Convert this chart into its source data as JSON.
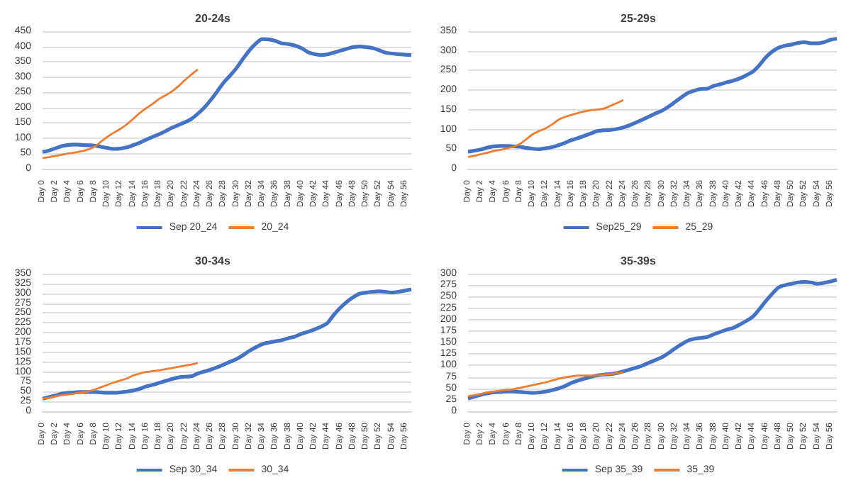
{
  "chart_data": [
    {
      "type": "line",
      "title": "20-24s",
      "categories": [
        "Day 0",
        null,
        "Day 2",
        null,
        "Day 4",
        null,
        "Day 6",
        null,
        "Day 8",
        null,
        "Day 10",
        null,
        "Day 12",
        null,
        "Day 14",
        null,
        "Day 16",
        null,
        "Day 18",
        null,
        "Day 20",
        null,
        "Day 22",
        null,
        "Day 24",
        null,
        "Day 26",
        null,
        "Day 28",
        null,
        "Day 30",
        null,
        "Day 32",
        null,
        "Day 34",
        null,
        "Day 36",
        null,
        "Day 38",
        null,
        "Day 40",
        null,
        "Day 42",
        null,
        "Day 44",
        null,
        "Day 46",
        null,
        "Day 48",
        null,
        "Day 50",
        null,
        "Day 52",
        null,
        "Day 54",
        null,
        "Day 56",
        null
      ],
      "ylim": [
        0,
        450
      ],
      "yticks": [
        0,
        50,
        100,
        150,
        200,
        250,
        300,
        350,
        400,
        450
      ],
      "grid": "y",
      "legend": "bottom",
      "marker": "none",
      "series": [
        {
          "name": "Sep 20_24",
          "color": "#4472c4",
          "values": [
            55,
            60,
            67,
            74,
            78,
            79,
            78,
            77,
            76,
            72,
            68,
            65,
            66,
            70,
            77,
            85,
            95,
            104,
            113,
            123,
            134,
            143,
            152,
            163,
            180,
            200,
            225,
            253,
            282,
            305,
            330,
            360,
            388,
            410,
            424,
            423,
            418,
            410,
            408,
            403,
            395,
            382,
            375,
            372,
            374,
            380,
            386,
            392,
            398,
            400,
            398,
            395,
            388,
            380,
            377,
            375,
            373,
            372
          ]
        },
        {
          "name": "20_24",
          "color": "#ed7d31",
          "values": [
            35,
            38,
            42,
            46,
            50,
            53,
            57,
            63,
            72,
            88,
            104,
            118,
            130,
            145,
            163,
            182,
            198,
            212,
            228,
            240,
            253,
            270,
            290,
            308,
            325,
            null,
            null,
            null,
            null,
            null,
            null,
            null,
            null,
            null,
            null,
            null,
            null,
            null,
            null,
            null,
            null,
            null,
            null,
            null,
            null,
            null,
            null,
            null,
            null,
            null,
            null,
            null,
            null,
            null,
            null,
            null,
            null,
            null
          ]
        }
      ]
    },
    {
      "type": "line",
      "title": "25-29s",
      "categories": [
        "Day 0",
        null,
        "Day 2",
        null,
        "Day 4",
        null,
        "Day 6",
        null,
        "Day 8",
        null,
        "Day 10",
        null,
        "Day 12",
        null,
        "Day 14",
        null,
        "Day 16",
        null,
        "Day 18",
        null,
        "Day 20",
        null,
        "Day 22",
        null,
        "Day 24",
        null,
        "Day 26",
        null,
        "Day 28",
        null,
        "Day 30",
        null,
        "Day 32",
        null,
        "Day 34",
        null,
        "Day 36",
        null,
        "Day 38",
        null,
        "Day 40",
        null,
        "Day 42",
        null,
        "Day 44",
        null,
        "Day 46",
        null,
        "Day 48",
        null,
        "Day 50",
        null,
        "Day 52",
        null,
        "Day 54",
        null,
        "Day 56",
        null
      ],
      "ylim": [
        0,
        350
      ],
      "yticks": [
        0,
        50,
        100,
        150,
        200,
        250,
        300,
        350
      ],
      "grid": "y",
      "legend": "bottom",
      "marker": "none",
      "series": [
        {
          "name": "Sep25_29",
          "color": "#4472c4",
          "values": [
            43,
            46,
            49,
            54,
            57,
            58,
            58,
            57,
            56,
            53,
            51,
            50,
            52,
            55,
            60,
            66,
            73,
            78,
            84,
            90,
            96,
            98,
            99,
            101,
            105,
            111,
            118,
            125,
            133,
            141,
            148,
            158,
            170,
            182,
            193,
            199,
            203,
            204,
            211,
            215,
            220,
            224,
            230,
            238,
            247,
            263,
            283,
            298,
            308,
            313,
            316,
            320,
            322,
            319,
            319,
            322,
            328,
            331
          ]
        },
        {
          "name": "25_29",
          "color": "#ed7d31",
          "values": [
            30,
            33,
            37,
            41,
            45,
            48,
            52,
            56,
            63,
            75,
            88,
            96,
            103,
            113,
            125,
            132,
            137,
            142,
            146,
            149,
            151,
            153,
            160,
            167,
            175,
            null,
            null,
            null,
            null,
            null,
            null,
            null,
            null,
            null,
            null,
            null,
            null,
            null,
            null,
            null,
            null,
            null,
            null,
            null,
            null,
            null,
            null,
            null,
            null,
            null,
            null,
            null,
            null,
            null,
            null,
            null,
            null,
            null
          ]
        }
      ]
    },
    {
      "type": "line",
      "title": "30-34s",
      "categories": [
        "Day 0",
        null,
        "Day 2",
        null,
        "Day 4",
        null,
        "Day 6",
        null,
        "Day 8",
        null,
        "Day 10",
        null,
        "Day 12",
        null,
        "Day 14",
        null,
        "Day 16",
        null,
        "Day 18",
        null,
        "Day 20",
        null,
        "Day 22",
        null,
        "Day 24",
        null,
        "Day 26",
        null,
        "Day 28",
        null,
        "Day 30",
        null,
        "Day 32",
        null,
        "Day 34",
        null,
        "Day 36",
        null,
        "Day 38",
        null,
        "Day 40",
        null,
        "Day 42",
        null,
        "Day 44",
        null,
        "Day 46",
        null,
        "Day 48",
        null,
        "Day 50",
        null,
        "Day 52",
        null,
        "Day 54",
        null,
        "Day 56",
        null
      ],
      "ylim": [
        0,
        350
      ],
      "yticks": [
        0,
        25,
        50,
        75,
        100,
        125,
        150,
        175,
        200,
        225,
        250,
        275,
        300,
        325,
        350
      ],
      "grid": "y",
      "legend": "bottom",
      "marker": "none",
      "series": [
        {
          "name": "Sep 30_34",
          "color": "#4472c4",
          "values": [
            32,
            36,
            40,
            45,
            47,
            48,
            49,
            49,
            49,
            48,
            47,
            47,
            48,
            50,
            53,
            57,
            63,
            67,
            72,
            77,
            82,
            86,
            88,
            89,
            96,
            101,
            106,
            112,
            119,
            126,
            133,
            143,
            154,
            163,
            171,
            175,
            178,
            181,
            186,
            190,
            197,
            202,
            208,
            215,
            224,
            245,
            263,
            278,
            290,
            299,
            302,
            304,
            305,
            304,
            302,
            304,
            307,
            310
          ]
        },
        {
          "name": "30_34",
          "color": "#ed7d31",
          "values": [
            32,
            34,
            38,
            41,
            43,
            45,
            48,
            50,
            55,
            61,
            67,
            73,
            78,
            83,
            91,
            96,
            100,
            102,
            104,
            107,
            110,
            113,
            116,
            119,
            123,
            null,
            null,
            null,
            null,
            null,
            null,
            null,
            null,
            null,
            null,
            null,
            null,
            null,
            null,
            null,
            null,
            null,
            null,
            null,
            null,
            null,
            null,
            null,
            null,
            null,
            null,
            null,
            null,
            null,
            null,
            null,
            null,
            null
          ]
        }
      ]
    },
    {
      "type": "line",
      "title": "35-39s",
      "categories": [
        "Day 0",
        null,
        "Day 2",
        null,
        "Day 4",
        null,
        "Day 6",
        null,
        "Day 8",
        null,
        "Day 10",
        null,
        "Day 12",
        null,
        "Day 14",
        null,
        "Day 16",
        null,
        "Day 18",
        null,
        "Day 20",
        null,
        "Day 22",
        null,
        "Day 24",
        null,
        "Day 26",
        null,
        "Day 28",
        null,
        "Day 30",
        null,
        "Day 32",
        null,
        "Day 34",
        null,
        "Day 36",
        null,
        "Day 38",
        null,
        "Day 40",
        null,
        "Day 42",
        null,
        "Day 44",
        null,
        "Day 46",
        null,
        "Day 48",
        null,
        "Day 50",
        null,
        "Day 52",
        null,
        "Day 54",
        null,
        "Day 56",
        null
      ],
      "ylim": [
        0,
        300
      ],
      "yticks": [
        0,
        25,
        50,
        75,
        100,
        125,
        150,
        175,
        200,
        225,
        250,
        275,
        300
      ],
      "grid": "y",
      "legend": "bottom",
      "marker": "none",
      "series": [
        {
          "name": "Sep 35_39",
          "color": "#4472c4",
          "values": [
            28,
            32,
            36,
            39,
            41,
            42,
            43,
            43,
            42,
            41,
            40,
            41,
            43,
            46,
            50,
            55,
            62,
            67,
            71,
            75,
            78,
            80,
            81,
            83,
            87,
            91,
            95,
            100,
            106,
            112,
            118,
            127,
            137,
            146,
            154,
            158,
            160,
            162,
            168,
            173,
            178,
            182,
            189,
            197,
            206,
            222,
            240,
            256,
            270,
            275,
            278,
            281,
            282,
            281,
            278,
            280,
            283,
            287
          ]
        },
        {
          "name": "35_39",
          "color": "#ed7d31",
          "values": [
            33,
            35,
            38,
            41,
            43,
            45,
            47,
            48,
            51,
            54,
            57,
            60,
            63,
            67,
            71,
            74,
            76,
            78,
            78,
            78,
            78,
            80,
            81,
            83,
            85,
            null,
            null,
            null,
            null,
            null,
            null,
            null,
            null,
            null,
            null,
            null,
            null,
            null,
            null,
            null,
            null,
            null,
            null,
            null,
            null,
            null,
            null,
            null,
            null,
            null,
            null,
            null,
            null,
            null,
            null,
            null,
            null,
            null
          ]
        }
      ]
    }
  ]
}
